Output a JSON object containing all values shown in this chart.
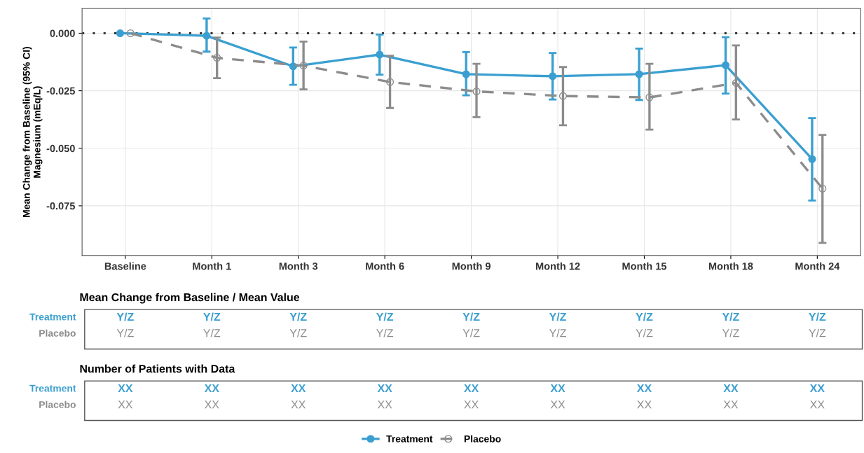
{
  "chart_data": {
    "type": "line",
    "ylabel": "Mean Change from Baseline (95% CI)\nMagnesium (mEq/L)",
    "categories": [
      "Baseline",
      "Month 1",
      "Month 3",
      "Month 6",
      "Month 9",
      "Month 12",
      "Month 15",
      "Month 18",
      "Month 24"
    ],
    "series": [
      {
        "name": "Treatment",
        "color": "#3a9fd0",
        "marker": "circle",
        "line_style": "solid",
        "values": [
          0,
          -0.0011,
          -0.0144,
          -0.0093,
          -0.0178,
          -0.0187,
          -0.0178,
          -0.0139,
          -0.0547
        ],
        "errors": [
          null,
          [
            -0.008,
            0.0064
          ],
          [
            -0.0224,
            -0.0062
          ],
          [
            -0.018,
            -0.0006
          ],
          [
            -0.027,
            -0.0082
          ],
          [
            -0.0288,
            -0.0086
          ],
          [
            -0.029,
            -0.0067
          ],
          [
            -0.0262,
            -0.0017
          ],
          [
            -0.0727,
            -0.0369
          ]
        ]
      },
      {
        "name": "Placebo",
        "color": "#8c8c8c",
        "marker": "circle",
        "line_style": "dashed",
        "values": [
          0,
          -0.0107,
          -0.0141,
          -0.0212,
          -0.0253,
          -0.0273,
          -0.0279,
          -0.0216,
          -0.0675
        ],
        "errors": [
          null,
          [
            -0.0195,
            -0.0019
          ],
          [
            -0.0244,
            -0.0036
          ],
          [
            -0.0325,
            -0.0098
          ],
          [
            -0.0365,
            -0.0133
          ],
          [
            -0.04,
            -0.0147
          ],
          [
            -0.0419,
            -0.0133
          ],
          [
            -0.0375,
            -0.0053
          ],
          [
            -0.0911,
            -0.0442
          ]
        ]
      }
    ],
    "ylim": [
      -0.0966,
      0.0107
    ],
    "yticks": [
      {
        "value": 0,
        "label": "0.000"
      },
      {
        "value": -0.025,
        "label": "-0.025"
      },
      {
        "value": -0.05,
        "label": "-0.050"
      },
      {
        "value": -0.075,
        "label": "-0.075"
      }
    ],
    "ref_lines": [
      {
        "axis": "y",
        "value": 0,
        "color": "#333333",
        "line_style": "dotted"
      }
    ],
    "grid": true,
    "legend": "bottom",
    "annotations": [
      "Mean Change from Baseline / Mean Value",
      "Treatment",
      "Placebo",
      "Y/Z",
      "Y/Z",
      "Y/Z",
      "Y/Z",
      "Y/Z",
      "Y/Z",
      "Y/Z",
      "Y/Z",
      "Y/Z",
      "Y/Z",
      "Y/Z",
      "Y/Z",
      "Y/Z",
      "Y/Z",
      "Y/Z",
      "Y/Z",
      "Y/Z",
      "Y/Z",
      "Number of Patients with Data",
      "Treatment",
      "Placebo",
      "XX",
      "XX",
      "XX",
      "XX",
      "XX",
      "XX",
      "XX",
      "XX",
      "XX",
      "XX",
      "XX",
      "XX",
      "XX",
      "XX",
      "XX",
      "XX",
      "XX",
      "XX"
    ]
  }
}
